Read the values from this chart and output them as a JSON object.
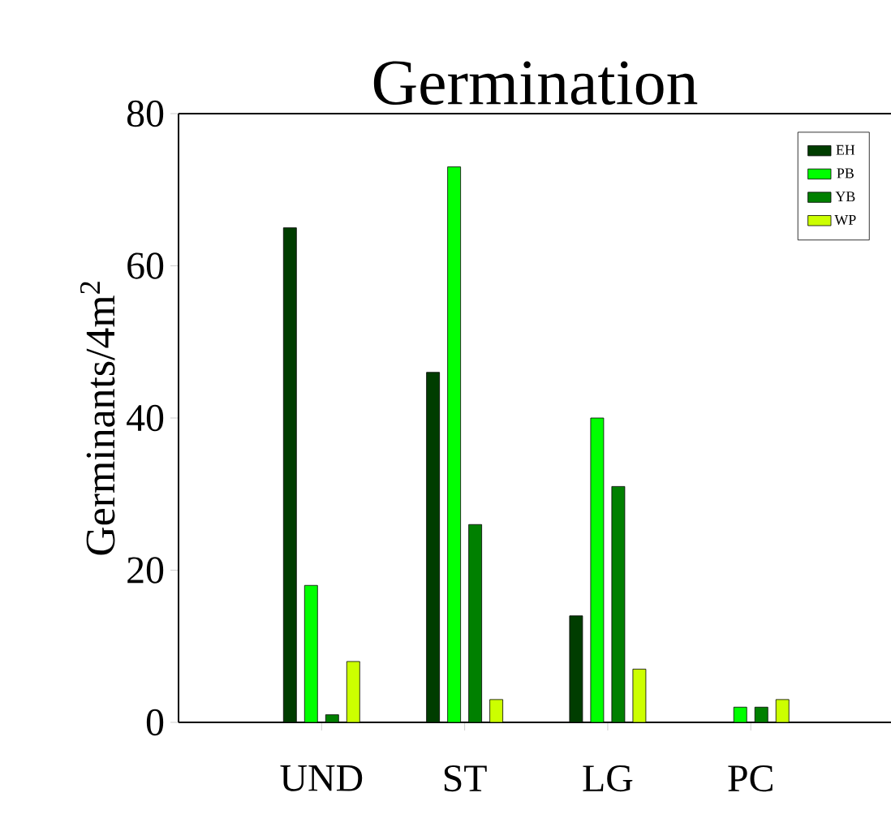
{
  "chart_data": {
    "type": "bar",
    "title": "Germination",
    "ylabel": "Germinants/4m$^{2}$",
    "categories": [
      "UND",
      "ST",
      "LG",
      "PC"
    ],
    "series": [
      {
        "name": "EH",
        "color": "#003d00",
        "values": [
          65,
          46,
          14,
          0
        ]
      },
      {
        "name": "PB",
        "color": "#00ff00",
        "values": [
          18,
          73,
          40,
          2
        ]
      },
      {
        "name": "YB",
        "color": "#008000",
        "values": [
          1,
          26,
          31,
          2
        ]
      },
      {
        "name": "WP",
        "color": "#ccff00",
        "values": [
          8,
          3,
          7,
          3
        ]
      }
    ],
    "ylim": [
      0,
      80
    ],
    "yticks": [
      0,
      20,
      40,
      60,
      80
    ],
    "grid": false,
    "legend": "top right"
  }
}
